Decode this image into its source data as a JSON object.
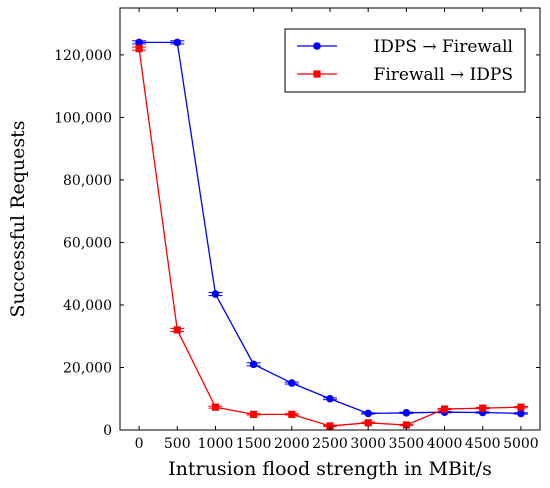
{
  "chart_data": {
    "type": "line",
    "x": [
      0,
      500,
      1000,
      1500,
      2000,
      2500,
      3000,
      3500,
      4000,
      4500,
      5000
    ],
    "xlabel": "Intrusion flood strength in MBit/s",
    "ylabel": "Successful Requests",
    "xlim": [
      -250,
      5250
    ],
    "ylim": [
      0,
      135000
    ],
    "xticks": [
      0,
      500,
      1000,
      1500,
      2000,
      2500,
      3000,
      3500,
      4000,
      4500,
      5000
    ],
    "xtick_labels": [
      "0",
      "500",
      "1000",
      "1500",
      "2000",
      "2500",
      "3000",
      "3500",
      "4000",
      "4500",
      "5000"
    ],
    "yticks": [
      0,
      20000,
      40000,
      60000,
      80000,
      100000,
      120000
    ],
    "ytick_labels": [
      "0",
      "20,000",
      "40,000",
      "60,000",
      "80,000",
      "100,000",
      "120,000"
    ],
    "grid": false,
    "error_bars": true,
    "legend_position": "top-right",
    "series": [
      {
        "name": "IDPS → Firewall",
        "color": "#0000ff",
        "marker": "circle",
        "values": [
          124000,
          124000,
          43500,
          21000,
          15000,
          10000,
          5300,
          5500,
          5700,
          5600,
          5300
        ],
        "error": [
          500,
          500,
          500,
          500,
          300,
          300,
          200,
          200,
          200,
          200,
          200
        ]
      },
      {
        "name": "Firewall → IDPS",
        "color": "#ff0000",
        "marker": "square",
        "values": [
          122000,
          32000,
          7300,
          5000,
          5000,
          1300,
          2300,
          1600,
          6700,
          7000,
          7300
        ],
        "error": [
          500,
          500,
          300,
          200,
          200,
          200,
          200,
          200,
          200,
          200,
          200
        ]
      }
    ]
  }
}
